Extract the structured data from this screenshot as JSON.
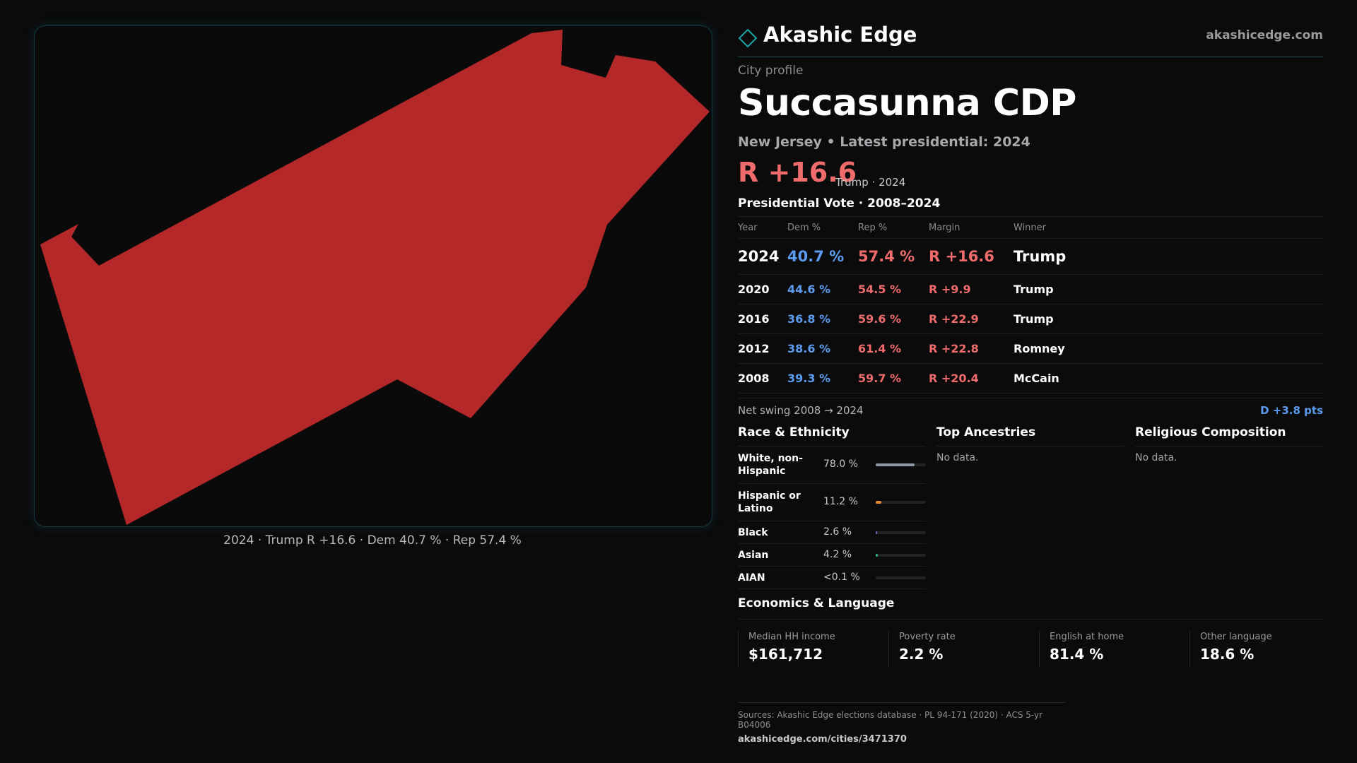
{
  "brand": {
    "name": "Akashic Edge",
    "site": "akashicedge.com",
    "accent": "#1aa3a8"
  },
  "profile": {
    "kicker": "City profile",
    "title": "Succasunna CDP",
    "subtitle": "New Jersey • Latest presidential: 2024",
    "margin": "R +16.6",
    "margin_note": "Trump · 2024"
  },
  "map": {
    "fill_color": "#b5282a",
    "caption": "2024 · Trump R +16.6 · Dem 40.7 % · Rep 57.4 %"
  },
  "vote_table": {
    "title": "Presidential Vote · 2008–2024",
    "headers": {
      "year": "Year",
      "dem": "Dem %",
      "rep": "Rep %",
      "margin": "Margin",
      "winner": "Winner"
    },
    "rows": [
      {
        "year": "2024",
        "dem": "40.7 %",
        "rep": "57.4 %",
        "margin": "R +16.6",
        "winner": "Trump"
      },
      {
        "year": "2020",
        "dem": "44.6 %",
        "rep": "54.5 %",
        "margin": "R +9.9",
        "winner": "Trump"
      },
      {
        "year": "2016",
        "dem": "36.8 %",
        "rep": "59.6 %",
        "margin": "R +22.9",
        "winner": "Trump"
      },
      {
        "year": "2012",
        "dem": "38.6 %",
        "rep": "61.4 %",
        "margin": "R +22.8",
        "winner": "Romney"
      },
      {
        "year": "2008",
        "dem": "39.3 %",
        "rep": "59.7 %",
        "margin": "R +20.4",
        "winner": "McCain"
      }
    ],
    "swing_label": "Net swing 2008 → 2024",
    "swing_value": "D +3.8 pts"
  },
  "race": {
    "title": "Race & Ethnicity",
    "rows": [
      {
        "name": "White, non-Hispanic",
        "pct": "78.0 %",
        "share": 0.78,
        "color": "#8d97a6"
      },
      {
        "name": "Hispanic or Latino",
        "pct": "11.2 %",
        "share": 0.112,
        "color": "#e08a2c"
      },
      {
        "name": "Black",
        "pct": "2.6 %",
        "share": 0.026,
        "color": "#8a63d2"
      },
      {
        "name": "Asian",
        "pct": "4.2 %",
        "share": 0.042,
        "color": "#2fb67a"
      },
      {
        "name": "AIAN",
        "pct": "<0.1 %",
        "share": 0.0,
        "color": "#c0504d"
      }
    ]
  },
  "ancestries": {
    "title": "Top Ancestries",
    "empty": "No data."
  },
  "religion": {
    "title": "Religious Composition",
    "empty": "No data."
  },
  "economics": {
    "title": "Economics & Language",
    "cards": [
      {
        "label": "Median HH income",
        "value": "$161,712"
      },
      {
        "label": "Poverty rate",
        "value": "2.2 %"
      },
      {
        "label": "English at home",
        "value": "81.4 %"
      },
      {
        "label": "Other language",
        "value": "18.6 %"
      }
    ]
  },
  "sources": {
    "line": "Sources: Akashic Edge elections database · PL 94-171 (2020) · ACS 5-yr B04006",
    "url": "akashicedge.com/cities/3471370"
  }
}
